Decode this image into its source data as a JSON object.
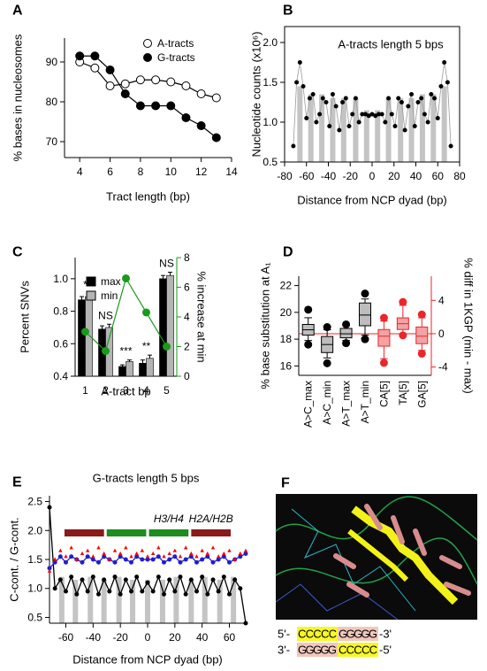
{
  "chart_data": [
    {
      "panel": "A",
      "type": "line",
      "xlabel": "Tract length (bp)",
      "ylabel": "% bases in nucleosomes",
      "x": [
        4,
        5,
        6,
        7,
        8,
        9,
        10,
        11,
        12,
        13
      ],
      "series": [
        {
          "name": "A-tracts",
          "color": "#000000",
          "marker": "circle",
          "filled": false,
          "values": [
            90,
            88.5,
            84,
            84.5,
            85.5,
            85.5,
            85,
            84,
            82,
            81
          ]
        },
        {
          "name": "G-tracts",
          "color": "#000000",
          "marker": "circle",
          "filled": true,
          "values": [
            91.5,
            91.5,
            88,
            82,
            79,
            79,
            79,
            76,
            74,
            71
          ]
        }
      ],
      "xlim": [
        3,
        14
      ],
      "xticks": [
        4,
        6,
        8,
        10,
        12,
        14
      ],
      "ylim": [
        66,
        96
      ],
      "yticks": [
        70,
        80,
        90
      ],
      "legend": "upper right"
    },
    {
      "panel": "B",
      "type": "line",
      "title": "A-tracts length 5 bps",
      "xlabel": "Distance from NCP dyad (bp)",
      "ylabel": "Nucleotide counts (x10⁶)",
      "x": [
        -72,
        -69,
        -66,
        -63,
        -60,
        -57,
        -54,
        -51,
        -48,
        -45,
        -42,
        -39,
        -36,
        -33,
        -30,
        -27,
        -24,
        -21,
        -18,
        -15,
        -12,
        -9,
        -6,
        -3,
        0,
        3,
        6,
        9,
        12,
        15,
        18,
        21,
        24,
        27,
        30,
        33,
        36,
        39,
        42,
        45,
        48,
        51,
        54,
        57,
        60,
        63,
        66,
        69,
        72
      ],
      "series": [
        {
          "color": "#000000",
          "line_color": "#9a9a9a",
          "marker": "circle",
          "filled": true,
          "values": [
            0.7,
            1.5,
            1.75,
            1.45,
            1.05,
            1.3,
            1.35,
            1.0,
            1.1,
            1.3,
            1.25,
            0.95,
            1.35,
            1.2,
            0.9,
            1.25,
            1.3,
            0.95,
            1.1,
            1.3,
            1.0,
            1.1,
            1.1,
            1.08,
            1.1,
            1.08,
            1.1,
            1.1,
            1.0,
            1.3,
            1.1,
            0.95,
            1.3,
            1.25,
            0.9,
            1.2,
            1.35,
            0.95,
            1.25,
            1.3,
            1.1,
            1.0,
            1.35,
            1.3,
            1.05,
            1.45,
            1.75,
            1.5,
            0.7
          ]
        }
      ],
      "bars": {
        "color": "#c4c4c4",
        "x": [
          -66,
          -56,
          -46,
          -36,
          -26,
          -15,
          -5,
          5,
          15,
          26,
          36,
          46,
          56,
          66
        ],
        "values": [
          1.45,
          1.35,
          1.35,
          1.3,
          1.3,
          1.3,
          1.15,
          1.15,
          1.3,
          1.3,
          1.3,
          1.35,
          1.35,
          1.45
        ]
      },
      "xlim": [
        -80,
        80
      ],
      "xticks": [
        -80,
        -60,
        -40,
        -20,
        0,
        20,
        40,
        60,
        80
      ],
      "ylim": [
        0.5,
        2.2
      ],
      "yticks": [
        0.5,
        {
          "value": 1.0,
          "label": "1.0"
        },
        1.5,
        {
          "value": 2.0,
          "label": "2.0"
        }
      ],
      "frame": true
    },
    {
      "panel": "C",
      "type": "bar",
      "xlabel": "A-tract bp",
      "ylabel": "Percent SNVs",
      "y2label": "% increase at min",
      "y2_color": "#1a9a1a",
      "categories": [
        1,
        2,
        3,
        4,
        5
      ],
      "series": [
        {
          "name": "max",
          "color": "#000000",
          "values": [
            0.87,
            0.69,
            0.46,
            0.48,
            1.0
          ],
          "errors": [
            0.02,
            0.02,
            0.01,
            0.02,
            0.02
          ]
        },
        {
          "name": "min",
          "color": "#b4b4b4",
          "values": [
            0.89,
            0.7,
            0.49,
            0.51,
            1.02
          ],
          "errors": [
            0.02,
            0.02,
            0.01,
            0.02,
            0.02
          ]
        },
        {
          "type": "line",
          "axis": "y2",
          "color": "#1a9a1a",
          "values": [
            3.0,
            1.7,
            6.6,
            4.3,
            2.0
          ]
        }
      ],
      "annotations": [
        "*",
        "NS",
        "***",
        "**",
        "NS"
      ],
      "ylim": [
        0.4,
        1.13
      ],
      "yticks": [
        0.4,
        0.6,
        0.8,
        {
          "value": 1.0,
          "label": "1.0"
        }
      ],
      "y2lim": [
        0,
        8
      ],
      "y2ticks": [
        0,
        2,
        4,
        6,
        8
      ],
      "legend": "upper left"
    },
    {
      "panel": "D",
      "type": "box",
      "ylabel": "% base substitution at A₁",
      "y2label": "% diff in 1KGP (min - max)",
      "y2_color": "#e8262b",
      "categories": [
        "A>C_max",
        "A>C_min",
        "A>T_max",
        "A>T_min",
        "CA[5]",
        "TA[5]",
        "GA[5]"
      ],
      "series": [
        {
          "color": "#000000",
          "fill": "#bdbdbd",
          "boxes": [
            {
              "whislo": 17.9,
              "q1": 18.3,
              "med": 18.7,
              "q3": 19.1,
              "whishi": 19.6,
              "fliers": [
                17.6,
                20.2
              ]
            },
            {
              "whislo": 16.6,
              "q1": 17.0,
              "med": 17.6,
              "q3": 18.2,
              "whishi": 18.7,
              "fliers": [
                16.2,
                18.9
              ]
            },
            {
              "whislo": 17.9,
              "q1": 18.1,
              "med": 18.4,
              "q3": 18.8,
              "whishi": 19.0,
              "fliers": [
                17.7,
                19.1
              ]
            },
            {
              "whislo": 18.3,
              "q1": 19.0,
              "med": 19.8,
              "q3": 20.7,
              "whishi": 21.0,
              "fliers": [
                18.0,
                21.4
              ]
            }
          ]
        },
        {
          "axis": "y2",
          "color": "#e8262b",
          "fill": "#f3a3a3",
          "boxes": [
            {
              "whislo": -3.0,
              "q1": -1.5,
              "med": -0.3,
              "q3": 0.5,
              "whishi": 1.5,
              "fliers": [
                -3.5,
                1.9
              ]
            },
            {
              "whislo": -0.1,
              "q1": 0.5,
              "med": 1.2,
              "q3": 1.9,
              "whishi": 3.4,
              "fliers": [
                -0.2,
                3.8
              ]
            },
            {
              "whislo": -2.0,
              "q1": -1.2,
              "med": -0.3,
              "q3": 0.8,
              "whishi": 1.9,
              "fliers": [
                -2.4,
                2.3
              ]
            }
          ]
        }
      ],
      "ylim": [
        15.3,
        22.7
      ],
      "yticks": [
        16,
        18,
        20,
        22
      ],
      "y2lim": [
        -5,
        6.9
      ],
      "y2ticks": [
        -4,
        0,
        4
      ],
      "y2_reference": 0
    },
    {
      "panel": "E",
      "type": "line",
      "title": "G-tracts length 5 bps",
      "xlabel": "Distance from NCP dyad (bp)",
      "ylabel": "C-cont. / G-cont.",
      "x": [
        -72,
        -68,
        -64,
        -60,
        -56,
        -52,
        -48,
        -44,
        -40,
        -36,
        -32,
        -28,
        -24,
        -20,
        -16,
        -12,
        -8,
        -4,
        0,
        4,
        8,
        12,
        16,
        20,
        24,
        28,
        32,
        36,
        40,
        44,
        48,
        52,
        56,
        60,
        64,
        68,
        72
      ],
      "series": [
        {
          "color": "#000000",
          "marker": "circle",
          "values": [
            2.4,
            1.0,
            1.15,
            0.95,
            1.2,
            0.9,
            1.15,
            0.95,
            1.2,
            0.9,
            1.15,
            0.95,
            1.2,
            0.9,
            1.15,
            0.95,
            1.2,
            0.95,
            1.1,
            0.95,
            1.2,
            0.9,
            1.15,
            0.95,
            1.2,
            0.9,
            1.15,
            0.95,
            1.2,
            0.9,
            1.15,
            0.95,
            1.2,
            0.9,
            1.15,
            1.0,
            0.4
          ]
        },
        {
          "color": "#1f1fd0",
          "marker": "circle",
          "values": [
            1.35,
            1.45,
            1.55,
            1.45,
            1.55,
            1.5,
            1.45,
            1.55,
            1.5,
            1.45,
            1.55,
            1.5,
            1.45,
            1.55,
            1.5,
            1.45,
            1.55,
            1.5,
            1.5,
            1.5,
            1.55,
            1.45,
            1.5,
            1.55,
            1.45,
            1.5,
            1.55,
            1.45,
            1.5,
            1.55,
            1.45,
            1.5,
            1.55,
            1.45,
            1.5,
            1.55,
            1.6
          ]
        },
        {
          "color": "#ff0000",
          "marker": "triangle",
          "line": false,
          "values": [
            1.3,
            1.5,
            1.65,
            1.55,
            1.7,
            1.5,
            1.6,
            1.65,
            1.55,
            1.7,
            1.6,
            1.5,
            1.65,
            1.6,
            1.7,
            1.55,
            1.6,
            1.65,
            1.55,
            1.6,
            1.7,
            1.55,
            1.6,
            1.65,
            1.55,
            1.7,
            1.6,
            1.55,
            1.65,
            1.6,
            1.7,
            1.55,
            1.6,
            1.65,
            1.5,
            1.6,
            1.65
          ]
        }
      ],
      "bars": {
        "color": "#c4c4c4",
        "x": [
          -63,
          -53,
          -42,
          -32,
          -21,
          -11,
          0,
          11,
          21,
          32,
          42,
          53,
          63
        ],
        "values": [
          1.2,
          1.15,
          1.2,
          1.15,
          1.2,
          1.15,
          1.15,
          1.15,
          1.2,
          1.15,
          1.2,
          1.15,
          1.2
        ]
      },
      "bands": [
        {
          "start": -61,
          "end": -32,
          "color": "#8b1a1a"
        },
        {
          "start": -30,
          "end": -1,
          "color": "#1e8c1e"
        },
        {
          "start": 1,
          "end": 30,
          "color": "#1e8c1e",
          "label": "H3/H4"
        },
        {
          "start": 32,
          "end": 61,
          "color": "#8b1a1a",
          "label": "H2A/H2B"
        }
      ],
      "xlim": [
        -72,
        72
      ],
      "xticks": [
        -60,
        -40,
        -20,
        0,
        20,
        40,
        60
      ],
      "ylim": [
        0.4,
        2.6
      ],
      "yticks": [
        0.5,
        {
          "value": 1.0,
          "label": "1.0"
        },
        1.5,
        {
          "value": 2.0,
          "label": "2.0"
        },
        2.5
      ]
    }
  ],
  "panel_f": {
    "label": "F",
    "strand_top": [
      "5'-",
      "CCCCC",
      "GGGGG",
      "-3'"
    ],
    "strand_bottom": [
      "3'-",
      "GGGGG",
      "CCCCC",
      "-5'"
    ]
  }
}
